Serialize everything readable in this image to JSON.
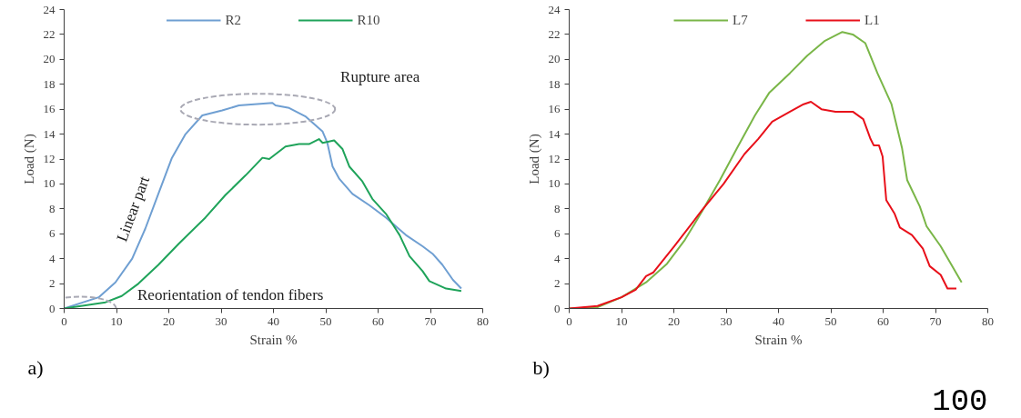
{
  "chart_data": [
    {
      "type": "line",
      "xlabel": "Strain %",
      "ylabel": "Load (N)",
      "xlim": [
        0,
        80
      ],
      "ylim": [
        0,
        24
      ],
      "xticks": [
        0,
        10,
        20,
        30,
        40,
        50,
        60,
        70,
        80
      ],
      "yticks": [
        0,
        2,
        4,
        6,
        8,
        10,
        12,
        14,
        16,
        18,
        20,
        22,
        24
      ],
      "grid": false,
      "legend": "top",
      "series": [
        {
          "name": "R2",
          "color": "#6f9fd2",
          "x": [
            0,
            6.6,
            9.8,
            13,
            15.5,
            18,
            20.6,
            23.2,
            26.4,
            30.2,
            33.4,
            39.8,
            40.4,
            43,
            46.2,
            49.4,
            50.3,
            51.3,
            52.6,
            55.1,
            58.3,
            61.5,
            65.3,
            68.5,
            70.4,
            72.3,
            74.3,
            75.9
          ],
          "values": [
            0,
            0.9,
            2.1,
            4,
            6.4,
            9.2,
            12.1,
            14,
            15.5,
            15.9,
            16.3,
            16.5,
            16.3,
            16.1,
            15.4,
            14.2,
            13.3,
            11.4,
            10.4,
            9.2,
            8.3,
            7.3,
            5.9,
            5,
            4.4,
            3.5,
            2.3,
            1.6
          ]
        },
        {
          "name": "R10",
          "color": "#1fa35a",
          "x": [
            0,
            7.9,
            11,
            14.2,
            18,
            21.9,
            27,
            30.8,
            34.7,
            37.9,
            39.2,
            42.3,
            44.9,
            46.8,
            48.7,
            49.4,
            51.6,
            53.2,
            54.5,
            57,
            58.9,
            61.5,
            64.1,
            66,
            68.5,
            69.8,
            73,
            75.9
          ],
          "values": [
            0,
            0.5,
            1,
            2,
            3.5,
            5.2,
            7.3,
            9.1,
            10.7,
            12.1,
            12,
            13,
            13.2,
            13.2,
            13.6,
            13.3,
            13.5,
            12.8,
            11.4,
            10.2,
            8.8,
            7.6,
            5.9,
            4.2,
            3,
            2.2,
            1.6,
            1.4
          ]
        }
      ],
      "annotations": [
        "Rupture area",
        {
          "text": "Linear part",
          "x": 17,
          "y": 8
        },
        "Reorientation of tendon fibers",
        "a)"
      ]
    },
    {
      "type": "line",
      "xlabel": "Strain %",
      "ylabel": "Load (N)",
      "xlim": [
        0,
        80
      ],
      "ylim": [
        0,
        24
      ],
      "xticks": [
        0,
        10,
        20,
        30,
        40,
        50,
        60,
        70,
        80
      ],
      "yticks": [
        0,
        2,
        4,
        6,
        8,
        10,
        12,
        14,
        16,
        18,
        20,
        22,
        24
      ],
      "grid": false,
      "legend": "top",
      "series": [
        {
          "name": "L7",
          "color": "#7ab648",
          "x": [
            0,
            5.4,
            10,
            14.7,
            18.7,
            22.1,
            25.4,
            28.8,
            32.1,
            35.5,
            38.2,
            42.2,
            45.5,
            48.9,
            52.2,
            54.2,
            56.6,
            58.9,
            61.6,
            63.6,
            64.6,
            67,
            68.3,
            71,
            75
          ],
          "values": [
            0,
            0.1,
            0.9,
            2.1,
            3.6,
            5.5,
            7.8,
            10.3,
            12.9,
            15.5,
            17.3,
            18.9,
            20.3,
            21.5,
            22.2,
            22,
            21.3,
            18.9,
            16.4,
            12.9,
            10.3,
            8.2,
            6.6,
            5,
            2.1
          ]
        },
        {
          "name": "L1",
          "color": "#e8101a",
          "x": [
            0,
            5.4,
            10,
            12.7,
            14.7,
            16.1,
            20.1,
            25.4,
            29.5,
            33.5,
            36.1,
            38.8,
            42.2,
            44.8,
            46.2,
            48.2,
            50.9,
            54.2,
            56.2,
            57.6,
            58.2,
            59.2,
            59.9,
            60.6,
            62.2,
            63.2,
            65.5,
            67.6,
            68.9,
            71,
            72.3,
            74
          ],
          "values": [
            0,
            0.2,
            0.9,
            1.5,
            2.6,
            2.9,
            5,
            7.9,
            10,
            12.4,
            13.6,
            15,
            15.8,
            16.4,
            16.6,
            16,
            15.8,
            15.8,
            15.2,
            13.6,
            13.1,
            13.1,
            12.2,
            8.7,
            7.6,
            6.5,
            5.9,
            4.8,
            3.4,
            2.7,
            1.6,
            1.6
          ]
        }
      ],
      "annotations": [
        "b)",
        "100"
      ]
    }
  ]
}
